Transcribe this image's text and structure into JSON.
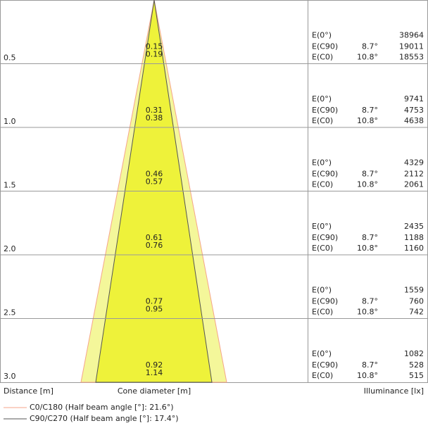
{
  "rows": [
    {
      "distance": "0.5",
      "diameters": [
        "0.15",
        "0.19"
      ],
      "labels": [
        "E(0°)",
        "E(C90)",
        "E(C0)"
      ],
      "angles": [
        "8.7°",
        "10.8°"
      ],
      "values": [
        "38964",
        "19011",
        "18553"
      ]
    },
    {
      "distance": "1.0",
      "diameters": [
        "0.31",
        "0.38"
      ],
      "labels": [
        "E(0°)",
        "E(C90)",
        "E(C0)"
      ],
      "angles": [
        "8.7°",
        "10.8°"
      ],
      "values": [
        "9741",
        "4753",
        "4638"
      ]
    },
    {
      "distance": "1.5",
      "diameters": [
        "0.46",
        "0.57"
      ],
      "labels": [
        "E(0°)",
        "E(C90)",
        "E(C0)"
      ],
      "angles": [
        "8.7°",
        "10.8°"
      ],
      "values": [
        "4329",
        "2112",
        "2061"
      ]
    },
    {
      "distance": "2.0",
      "diameters": [
        "0.61",
        "0.76"
      ],
      "labels": [
        "E(0°)",
        "E(C90)",
        "E(C0)"
      ],
      "angles": [
        "8.7°",
        "10.8°"
      ],
      "values": [
        "2435",
        "1188",
        "1160"
      ]
    },
    {
      "distance": "2.5",
      "diameters": [
        "0.77",
        "0.95"
      ],
      "labels": [
        "E(0°)",
        "E(C90)",
        "E(C0)"
      ],
      "angles": [
        "8.7°",
        "10.8°"
      ],
      "values": [
        "1559",
        "760",
        "742"
      ]
    },
    {
      "distance": "3.0",
      "diameters": [
        "0.92",
        "1.14"
      ],
      "labels": [
        "E(0°)",
        "E(C90)",
        "E(C0)"
      ],
      "angles": [
        "8.7°",
        "10.8°"
      ],
      "values": [
        "1082",
        "528",
        "515"
      ]
    }
  ],
  "footer": {
    "distance": "Distance [m]",
    "diameter": "Cone diameter [m]",
    "illuminance": "Illuminance [lx]"
  },
  "legend": [
    "C0/C180 (Half beam angle [°]: 21.6°)",
    "C90/C270 (Half beam angle [°]: 17.4°)"
  ]
}
